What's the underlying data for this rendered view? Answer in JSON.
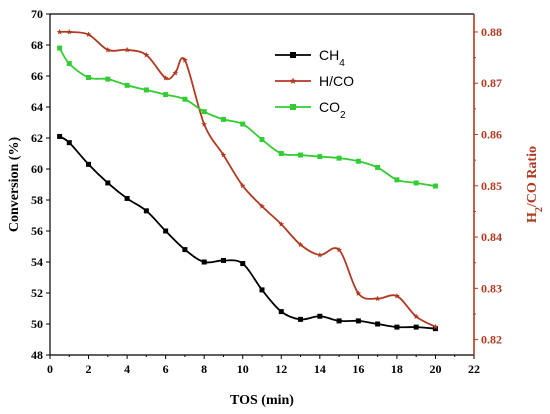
{
  "chart_data": {
    "type": "line",
    "title": "",
    "xlabel": "TOS (min)",
    "ylabel_left": "Conversion (%)",
    "ylabel_right": "H2/CO Ratio",
    "xlim": [
      0,
      22
    ],
    "ylim_left": [
      48,
      70
    ],
    "ylim_right": [
      0.817,
      0.8835
    ],
    "x_ticks": [
      "0",
      "2",
      "4",
      "6",
      "8",
      "10",
      "12",
      "14",
      "16",
      "18",
      "20",
      "22"
    ],
    "y_left_ticks": [
      "48",
      "50",
      "52",
      "54",
      "56",
      "58",
      "60",
      "62",
      "64",
      "66",
      "68",
      "70"
    ],
    "y_right_ticks": [
      "0.82",
      "0.83",
      "0.84",
      "0.85",
      "0.86",
      "0.87",
      "0.88"
    ],
    "legend_position": "top-center",
    "series": [
      {
        "name": "CH4",
        "axis": "left",
        "color": "#000000",
        "marker": "square",
        "x": [
          0.5,
          1,
          2,
          3,
          4,
          5,
          6,
          7,
          8,
          9,
          10,
          11,
          12,
          13,
          14,
          15,
          16,
          17,
          18,
          19,
          20
        ],
        "y": [
          62.1,
          61.7,
          60.3,
          59.1,
          58.1,
          57.3,
          56.0,
          54.8,
          54.0,
          54.1,
          53.9,
          52.2,
          50.8,
          50.3,
          50.5,
          50.2,
          50.2,
          50.0,
          49.8,
          49.8,
          49.7
        ]
      },
      {
        "name": "H/CO",
        "axis": "right",
        "color": "#b03a22",
        "marker": "star",
        "x": [
          0.5,
          1,
          2,
          3,
          4,
          5,
          6,
          6.5,
          7,
          8,
          9,
          10,
          11,
          12,
          13,
          14,
          15,
          16,
          17,
          18,
          19,
          20
        ],
        "y": [
          0.88,
          0.88,
          0.8795,
          0.8765,
          0.8765,
          0.8755,
          0.871,
          0.872,
          0.8745,
          0.862,
          0.856,
          0.85,
          0.846,
          0.8425,
          0.8385,
          0.8365,
          0.8375,
          0.829,
          0.828,
          0.8285,
          0.8245,
          0.8225
        ]
      },
      {
        "name": "CO2",
        "axis": "left",
        "color": "#33cc33",
        "marker": "square",
        "x": [
          0.5,
          1,
          2,
          3,
          4,
          5,
          6,
          7,
          8,
          9,
          10,
          11,
          12,
          13,
          14,
          15,
          16,
          17,
          18,
          19,
          20
        ],
        "y": [
          67.8,
          66.8,
          65.9,
          65.8,
          65.4,
          65.1,
          64.8,
          64.5,
          63.7,
          63.2,
          62.9,
          61.9,
          61.0,
          60.9,
          60.8,
          60.7,
          60.5,
          60.1,
          59.3,
          59.1,
          58.9
        ]
      }
    ]
  }
}
